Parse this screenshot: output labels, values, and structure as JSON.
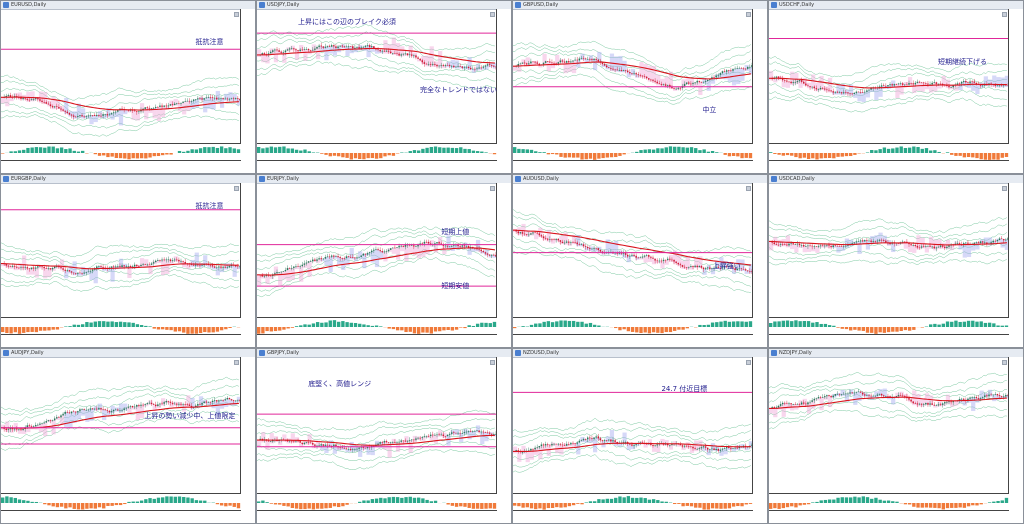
{
  "colors": {
    "hline": "#e0269a",
    "ma": "#d8141c",
    "cloud_bear": "#f0a4d8",
    "cloud_bull": "#a4a8f0",
    "bands": "#2fa86a",
    "candle_up": "#2a7a5a",
    "candle_down": "#d01e38",
    "macd_pos": "#2aa88a",
    "macd_neg": "#f07a3a",
    "annotation": "#1e1a8c"
  },
  "panels": [
    {
      "title": "EURUSD,Daily",
      "annotations": [
        "抵抗注意"
      ]
    },
    {
      "title": "USDJPY,Daily",
      "annotations": [
        "上昇にはこの辺のブレイク必須",
        "完全なトレンドではない"
      ]
    },
    {
      "title": "GBPUSD,Daily",
      "annotations": [
        "中立"
      ]
    },
    {
      "title": "USDCHF,Daily",
      "annotations": [
        "短期継続下げる"
      ]
    },
    {
      "title": "EURGBP,Daily",
      "annotations": [
        "抵抗注意"
      ]
    },
    {
      "title": "EURJPY,Daily",
      "annotations": [
        "短期上値",
        "短期安値"
      ]
    },
    {
      "title": "AUDUSD,Daily",
      "annotations": [
        "上昇強い"
      ]
    },
    {
      "title": "USDCAD,Daily",
      "annotations": []
    },
    {
      "title": "AUDJPY,Daily",
      "annotations": [
        "上昇の勢い減少中、上値限定"
      ]
    },
    {
      "title": "GBPJPY,Daily",
      "annotations": [
        "底堅く、高値レンジ"
      ]
    },
    {
      "title": "NZDUSD,Daily",
      "annotations": [
        "24.7 付近目標"
      ]
    },
    {
      "title": "NZDJPY,Daily",
      "annotations": []
    }
  ]
}
